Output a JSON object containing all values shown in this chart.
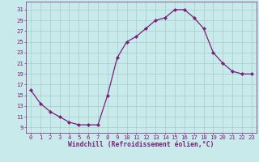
{
  "x": [
    0,
    1,
    2,
    3,
    4,
    5,
    6,
    7,
    8,
    9,
    10,
    11,
    12,
    13,
    14,
    15,
    16,
    17,
    18,
    19,
    20,
    21,
    22,
    23
  ],
  "y": [
    16,
    13.5,
    12,
    11,
    10,
    9.5,
    9.5,
    9.5,
    15,
    22,
    25,
    26,
    27.5,
    29,
    29.5,
    31,
    31,
    29.5,
    27.5,
    23,
    21,
    19.5,
    19,
    19
  ],
  "line_color": "#7a1f7a",
  "marker_color": "#7a1f7a",
  "bg_color": "#c8eaea",
  "grid_color": "#a8cccc",
  "tick_label_color": "#7a1f7a",
  "xlabel": "Windchill (Refroidissement éolien,°C)",
  "xlabel_color": "#7a1f7a",
  "xlim": [
    -0.5,
    23.5
  ],
  "ylim": [
    8.0,
    32.5
  ],
  "yticks": [
    9,
    11,
    13,
    15,
    17,
    19,
    21,
    23,
    25,
    27,
    29,
    31
  ],
  "xticks": [
    0,
    1,
    2,
    3,
    4,
    5,
    6,
    7,
    8,
    9,
    10,
    11,
    12,
    13,
    14,
    15,
    16,
    17,
    18,
    19,
    20,
    21,
    22,
    23
  ],
  "font_size": 5.2,
  "xlabel_font_size": 5.8,
  "line_width": 0.9,
  "marker_size": 2.2
}
